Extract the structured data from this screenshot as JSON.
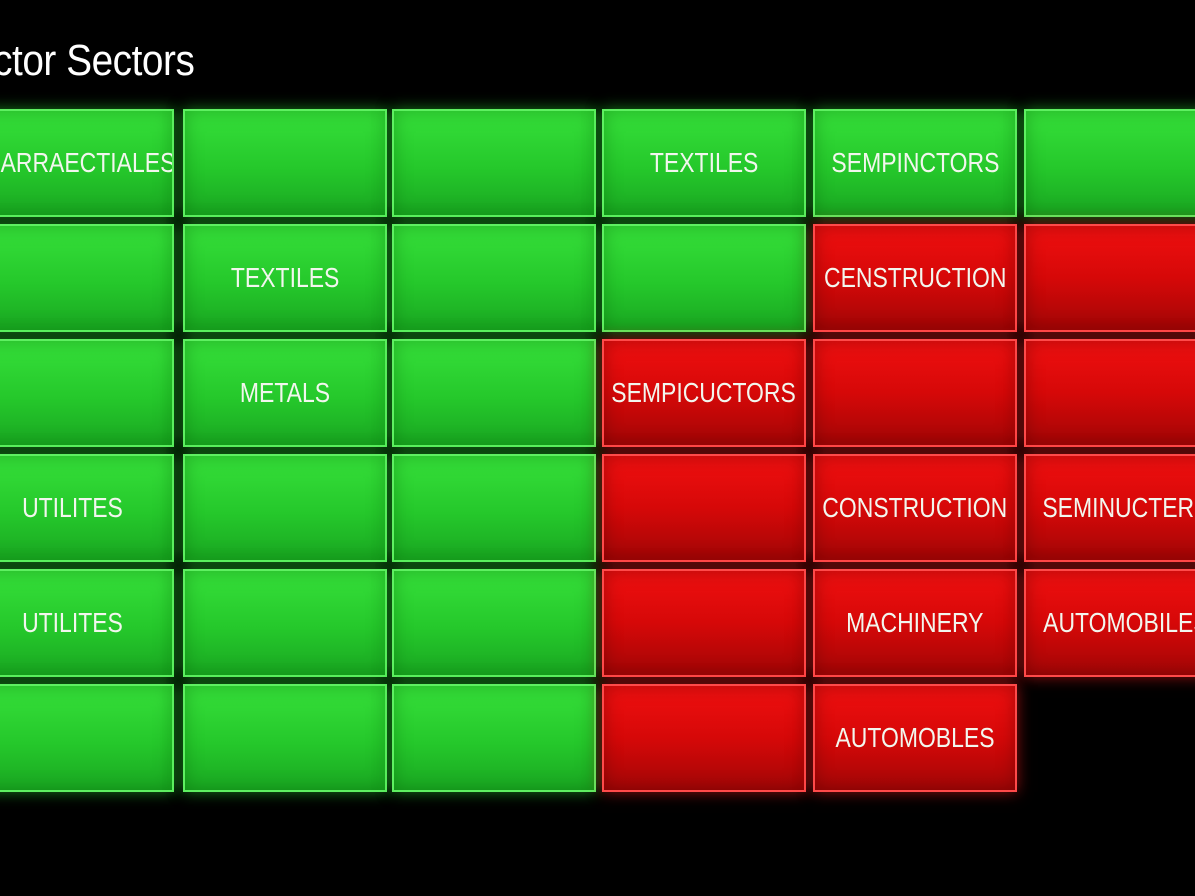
{
  "header": {
    "title": "ector Sectors"
  },
  "legend_colors": {
    "up": "#2bd12f",
    "down": "#e00808"
  },
  "tiles": [
    {
      "id": "r1c1",
      "label": "PHARRAECTIALES",
      "status": "up"
    },
    {
      "id": "r1c2",
      "label": "",
      "status": "up"
    },
    {
      "id": "r1c3",
      "label": "",
      "status": "up"
    },
    {
      "id": "r1c4",
      "label": "TEXTILES",
      "status": "up"
    },
    {
      "id": "r1c5",
      "label": "SEMPINCTORS",
      "status": "up"
    },
    {
      "id": "r1c6",
      "label": "",
      "status": "up"
    },
    {
      "id": "r2c1",
      "label": "",
      "status": "up"
    },
    {
      "id": "r2c2",
      "label": "TEXTILES",
      "status": "up"
    },
    {
      "id": "r2c3",
      "label": "",
      "status": "up"
    },
    {
      "id": "r2c4",
      "label": "",
      "status": "up"
    },
    {
      "id": "r2c5",
      "label": "CENSTRUCTION",
      "status": "down"
    },
    {
      "id": "r2c6",
      "label": "",
      "status": "down"
    },
    {
      "id": "r3c1",
      "label": "",
      "status": "up"
    },
    {
      "id": "r3c2",
      "label": "METALS",
      "status": "up"
    },
    {
      "id": "r3c3",
      "label": "",
      "status": "up"
    },
    {
      "id": "r3c4",
      "label": "SEMPICUCTORS",
      "status": "down"
    },
    {
      "id": "r3c5",
      "label": "",
      "status": "down"
    },
    {
      "id": "r3c6",
      "label": "",
      "status": "down"
    },
    {
      "id": "r4c1",
      "label": "UTILITES",
      "status": "up"
    },
    {
      "id": "r4c2",
      "label": "",
      "status": "up"
    },
    {
      "id": "r4c3",
      "label": "",
      "status": "up"
    },
    {
      "id": "r4c4",
      "label": "",
      "status": "down"
    },
    {
      "id": "r4c5",
      "label": "CONSTRUCTION",
      "status": "down"
    },
    {
      "id": "r4c6",
      "label": "SEMINUCTERS",
      "status": "down"
    },
    {
      "id": "r5c1",
      "label": "UTILITES",
      "status": "up"
    },
    {
      "id": "r5c2",
      "label": "",
      "status": "up"
    },
    {
      "id": "r5c3",
      "label": "",
      "status": "up"
    },
    {
      "id": "r5c4",
      "label": "",
      "status": "down"
    },
    {
      "id": "r5c5",
      "label": "MACHINERY",
      "status": "down"
    },
    {
      "id": "r5c6",
      "label": "AUTOMOBILES",
      "status": "down"
    },
    {
      "id": "r6c1",
      "label": "",
      "status": "up"
    },
    {
      "id": "r6c2",
      "label": "",
      "status": "up"
    },
    {
      "id": "r6c3",
      "label": "",
      "status": "up"
    },
    {
      "id": "r6c4",
      "label": "",
      "status": "down"
    },
    {
      "id": "r6c5",
      "label": "AUTOMOBLES",
      "status": "down"
    }
  ]
}
